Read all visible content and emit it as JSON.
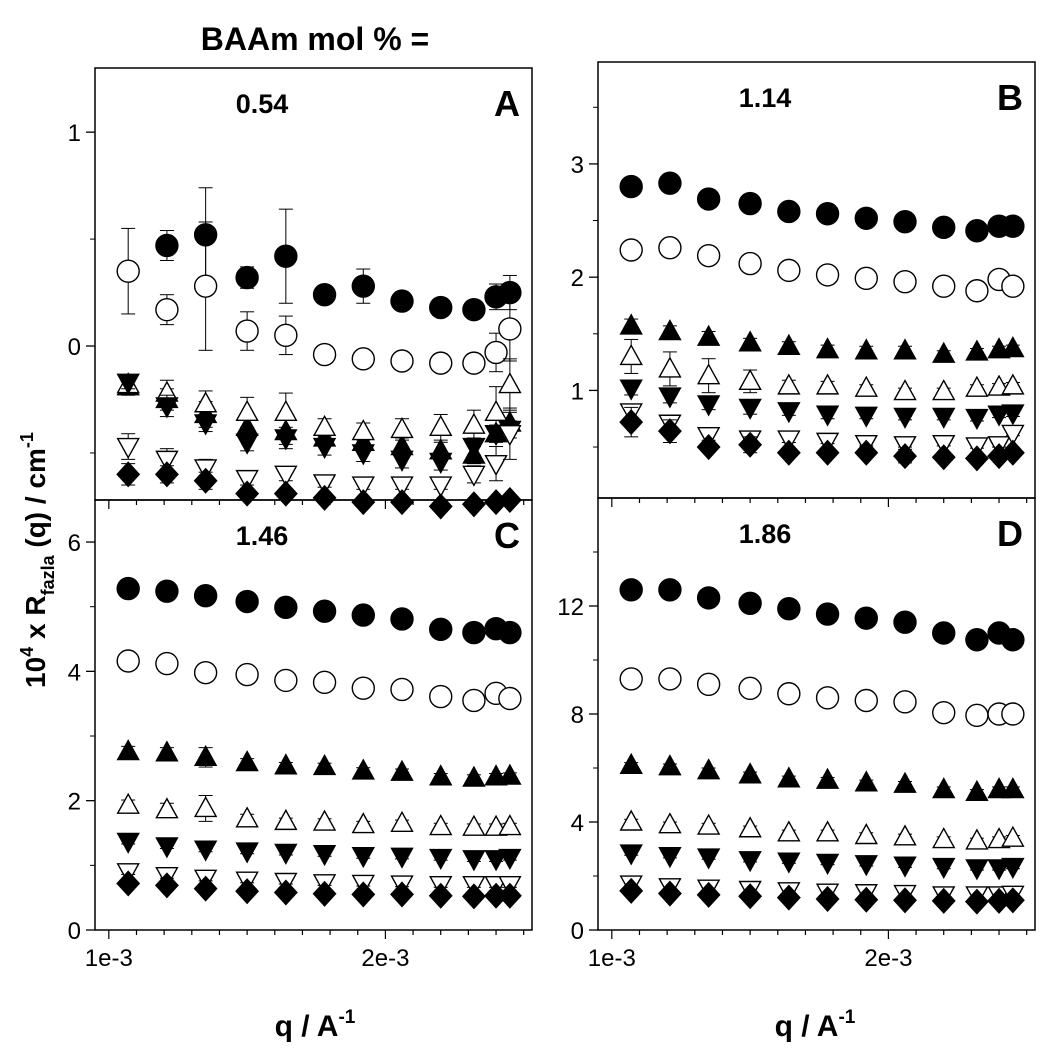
{
  "figure": {
    "header_label": "BAAm mol % =",
    "y_label_main": "10",
    "y_label_sup": "4",
    "y_label_mid": " x R",
    "y_label_sub": "fazla",
    "y_label_end": " (q)  / cm",
    "y_label_sup2": "-1",
    "x_label_main": "q  /  A",
    "x_label_sup": "-1"
  },
  "chart_data": [
    {
      "type": "scatter",
      "panel_letter": "A",
      "panel_value": "0.54",
      "xlim": [
        0.00095,
        0.00253
      ],
      "ylim": [
        -0.72,
        1.3
      ],
      "yticks": [
        0,
        1
      ],
      "ytick_labels": [
        "0",
        "1"
      ],
      "xticks": [
        0.001,
        0.002
      ],
      "xtick_labels": [],
      "x": [
        0.00107,
        0.00121,
        0.00135,
        0.0015,
        0.00164,
        0.00178,
        0.00192,
        0.00206,
        0.0022,
        0.00232,
        0.0024,
        0.00245
      ],
      "series": [
        {
          "marker": "circle-filled",
          "values": [
            null,
            0.47,
            0.52,
            0.32,
            0.42,
            0.24,
            0.28,
            0.21,
            0.18,
            0.17,
            0.23,
            0.25
          ],
          "errors": [
            null,
            0.07,
            0.22,
            0.05,
            0.22,
            0.0,
            0.08,
            0.0,
            0.0,
            0.0,
            0.06,
            0.08
          ]
        },
        {
          "marker": "circle-open",
          "values": [
            0.35,
            0.17,
            0.28,
            0.07,
            0.05,
            -0.04,
            -0.06,
            -0.07,
            -0.08,
            -0.08,
            -0.03,
            0.08
          ],
          "errors": [
            0.2,
            0.07,
            0.3,
            0.09,
            0.09,
            0.04,
            0.03,
            0.03,
            0.03,
            0.03,
            0.09,
            0.15
          ]
        },
        {
          "marker": "triangle-up-filled",
          "values": [
            -0.19,
            -0.25,
            -0.32,
            -0.38,
            -0.4,
            -0.43,
            -0.45,
            -0.47,
            -0.49,
            -0.51,
            -0.41,
            -0.36
          ],
          "errors": [
            0.04,
            0.05,
            0.06,
            0.04,
            0.06,
            0.04,
            0.04,
            0.04,
            0.04,
            0.04,
            0.04,
            0.05
          ]
        },
        {
          "marker": "triangle-up-open",
          "values": [
            -0.18,
            -0.22,
            -0.27,
            -0.31,
            -0.31,
            -0.38,
            -0.4,
            -0.39,
            -0.38,
            -0.37,
            -0.31,
            -0.18
          ],
          "errors": [
            0.04,
            0.06,
            0.06,
            0.07,
            0.09,
            0.04,
            0.04,
            0.05,
            0.06,
            0.07,
            0.12,
            0.12
          ]
        },
        {
          "marker": "triangle-down-filled",
          "values": [
            -0.17,
            -0.28,
            -0.36,
            -0.45,
            -0.43,
            -0.47,
            -0.5,
            -0.53,
            -0.54,
            -0.47,
            -0.41,
            -0.39
          ],
          "errors": [
            0.03,
            0.05,
            0.04,
            0.04,
            0.05,
            0.04,
            0.04,
            0.04,
            0.04,
            0.04,
            0.04,
            0.04
          ]
        },
        {
          "marker": "triangle-down-open",
          "values": [
            -0.47,
            -0.53,
            -0.57,
            -0.62,
            -0.6,
            -0.64,
            -0.65,
            -0.65,
            -0.65,
            -0.6,
            -0.55,
            -0.41
          ],
          "errors": [
            0.06,
            0.05,
            0.04,
            0.03,
            0.03,
            0.02,
            0.02,
            0.02,
            0.02,
            0.04,
            0.08,
            0.12
          ]
        },
        {
          "marker": "diamond-filled",
          "values": [
            -0.6,
            -0.6,
            -0.63,
            -0.69,
            -0.69,
            -0.71,
            -0.73,
            -0.73,
            -0.75,
            -0.74,
            -0.73,
            -0.72
          ],
          "errors": [
            0.05,
            0.04,
            0.04,
            0.02,
            0.02,
            0.02,
            0.02,
            0.02,
            0.02,
            0.02,
            0.02,
            0.02
          ]
        }
      ]
    },
    {
      "type": "scatter",
      "panel_letter": "B",
      "panel_value": "1.14",
      "xlim": [
        0.00095,
        0.00253
      ],
      "ylim": [
        0.05,
        3.9
      ],
      "yticks": [
        1,
        2,
        3
      ],
      "ytick_labels": [
        "1",
        "2",
        "3"
      ],
      "xticks": [
        0.001,
        0.002
      ],
      "xtick_labels": [],
      "x": [
        0.00107,
        0.00121,
        0.00135,
        0.0015,
        0.00164,
        0.00178,
        0.00192,
        0.00206,
        0.0022,
        0.00232,
        0.0024,
        0.00245
      ],
      "series": [
        {
          "marker": "circle-filled",
          "values": [
            2.8,
            2.83,
            2.69,
            2.65,
            2.58,
            2.56,
            2.52,
            2.49,
            2.44,
            2.41,
            2.45,
            2.45
          ],
          "errors": [
            0.06,
            0.06,
            0.05,
            0.04,
            0.04,
            0.04,
            0.04,
            0.04,
            0.04,
            0.04,
            0.04,
            0.04
          ]
        },
        {
          "marker": "circle-open",
          "values": [
            2.24,
            2.26,
            2.19,
            2.12,
            2.06,
            2.02,
            1.99,
            1.96,
            1.92,
            1.88,
            1.98,
            1.92
          ],
          "errors": [
            0.06,
            0.05,
            0.07,
            0.05,
            0.04,
            0.04,
            0.04,
            0.04,
            0.04,
            0.04,
            0.04,
            0.04
          ]
        },
        {
          "marker": "triangle-up-filled",
          "values": [
            1.57,
            1.52,
            1.47,
            1.42,
            1.39,
            1.36,
            1.35,
            1.35,
            1.32,
            1.34,
            1.36,
            1.37
          ],
          "errors": [
            0.06,
            0.05,
            0.05,
            0.04,
            0.04,
            0.04,
            0.04,
            0.04,
            0.03,
            0.03,
            0.03,
            0.03
          ]
        },
        {
          "marker": "triangle-up-open",
          "values": [
            1.3,
            1.19,
            1.13,
            1.08,
            1.04,
            1.04,
            1.02,
            0.99,
            0.99,
            1.02,
            1.03,
            1.04
          ],
          "errors": [
            0.15,
            0.15,
            0.15,
            0.1,
            0.05,
            0.04,
            0.03,
            0.03,
            0.03,
            0.03,
            0.03,
            0.03
          ]
        },
        {
          "marker": "triangle-down-filled",
          "values": [
            1.02,
            0.95,
            0.88,
            0.85,
            0.82,
            0.79,
            0.78,
            0.77,
            0.77,
            0.76,
            0.79,
            0.8
          ],
          "errors": [
            0.06,
            0.06,
            0.05,
            0.06,
            0.04,
            0.04,
            0.03,
            0.03,
            0.03,
            0.03,
            0.03,
            0.03
          ]
        },
        {
          "marker": "triangle-down-open",
          "values": [
            0.81,
            0.71,
            0.6,
            0.57,
            0.57,
            0.55,
            0.53,
            0.52,
            0.53,
            0.51,
            0.52,
            0.62
          ],
          "errors": [
            0.05,
            0.05,
            0.04,
            0.03,
            0.03,
            0.02,
            0.02,
            0.02,
            0.02,
            0.02,
            0.02,
            0.02
          ]
        },
        {
          "marker": "diamond-filled",
          "values": [
            0.72,
            0.64,
            0.5,
            0.52,
            0.45,
            0.45,
            0.45,
            0.42,
            0.41,
            0.4,
            0.42,
            0.45
          ],
          "errors": [
            0.13,
            0.1,
            0.04,
            0.07,
            0.04,
            0.04,
            0.04,
            0.06,
            0.04,
            0.04,
            0.04,
            0.04
          ]
        }
      ]
    },
    {
      "type": "scatter",
      "panel_letter": "C",
      "panel_value": "1.46",
      "xlim": [
        0.00095,
        0.00253
      ],
      "ylim": [
        0,
        6.65
      ],
      "yticks": [
        0,
        2,
        4,
        6
      ],
      "ytick_labels": [
        "0",
        "2",
        "4",
        "6"
      ],
      "xticks": [
        0.001,
        0.002
      ],
      "xtick_labels": [
        "1e-3",
        "2e-3"
      ],
      "x": [
        0.00107,
        0.00121,
        0.00135,
        0.0015,
        0.00164,
        0.00178,
        0.00192,
        0.00206,
        0.0022,
        0.00232,
        0.0024,
        0.00245
      ],
      "series": [
        {
          "marker": "circle-filled",
          "values": [
            5.28,
            5.24,
            5.17,
            5.08,
            4.99,
            4.93,
            4.87,
            4.81,
            4.65,
            4.6,
            4.66,
            4.6
          ],
          "errors": [
            0.05,
            0.05,
            0.05,
            0.05,
            0.05,
            0.05,
            0.05,
            0.05,
            0.05,
            0.05,
            0.05,
            0.05
          ]
        },
        {
          "marker": "circle-open",
          "values": [
            4.16,
            4.12,
            3.98,
            3.95,
            3.86,
            3.83,
            3.74,
            3.72,
            3.61,
            3.55,
            3.66,
            3.58
          ],
          "errors": [
            0.05,
            0.05,
            0.05,
            0.05,
            0.05,
            0.05,
            0.05,
            0.05,
            0.05,
            0.05,
            0.05,
            0.05
          ]
        },
        {
          "marker": "triangle-up-filled",
          "values": [
            2.76,
            2.74,
            2.67,
            2.59,
            2.54,
            2.53,
            2.46,
            2.44,
            2.37,
            2.35,
            2.37,
            2.38
          ],
          "errors": [
            0.08,
            0.08,
            0.15,
            0.06,
            0.05,
            0.05,
            0.05,
            0.05,
            0.05,
            0.05,
            0.05,
            0.05
          ]
        },
        {
          "marker": "triangle-up-open",
          "values": [
            1.93,
            1.86,
            1.88,
            1.72,
            1.68,
            1.67,
            1.63,
            1.65,
            1.6,
            1.59,
            1.59,
            1.6
          ],
          "errors": [
            0.08,
            0.1,
            0.2,
            0.07,
            0.05,
            0.05,
            0.05,
            0.05,
            0.05,
            0.05,
            0.05,
            0.05
          ]
        },
        {
          "marker": "triangle-down-filled",
          "values": [
            1.37,
            1.3,
            1.25,
            1.22,
            1.2,
            1.18,
            1.15,
            1.14,
            1.12,
            1.1,
            1.1,
            1.12
          ],
          "errors": [
            0.04,
            0.04,
            0.04,
            0.04,
            0.04,
            0.04,
            0.04,
            0.04,
            0.04,
            0.04,
            0.04,
            0.04
          ]
        },
        {
          "marker": "triangle-down-open",
          "values": [
            0.9,
            0.84,
            0.8,
            0.77,
            0.75,
            0.73,
            0.72,
            0.71,
            0.7,
            0.7,
            0.7,
            0.7
          ],
          "errors": [
            0.04,
            0.04,
            0.04,
            0.04,
            0.04,
            0.04,
            0.04,
            0.04,
            0.04,
            0.04,
            0.04,
            0.04
          ]
        },
        {
          "marker": "diamond-filled",
          "values": [
            0.72,
            0.69,
            0.64,
            0.6,
            0.58,
            0.56,
            0.55,
            0.55,
            0.53,
            0.52,
            0.53,
            0.53
          ],
          "errors": [
            0.04,
            0.04,
            0.04,
            0.04,
            0.04,
            0.04,
            0.04,
            0.04,
            0.04,
            0.04,
            0.04,
            0.04
          ]
        }
      ]
    },
    {
      "type": "scatter",
      "panel_letter": "D",
      "panel_value": "1.86",
      "xlim": [
        0.00095,
        0.00253
      ],
      "ylim": [
        0,
        16
      ],
      "yticks": [
        0,
        4,
        8,
        12
      ],
      "ytick_labels": [
        "0",
        "4",
        "8",
        "12"
      ],
      "xticks": [
        0.001,
        0.002
      ],
      "xtick_labels": [
        "1e-3",
        "2e-3"
      ],
      "x": [
        0.00107,
        0.00121,
        0.00135,
        0.0015,
        0.00164,
        0.00178,
        0.00192,
        0.00206,
        0.0022,
        0.00232,
        0.0024,
        0.00245
      ],
      "series": [
        {
          "marker": "circle-filled",
          "values": [
            12.6,
            12.6,
            12.3,
            12.1,
            11.9,
            11.7,
            11.55,
            11.4,
            11.0,
            10.75,
            11.0,
            10.75
          ],
          "errors": [
            0.1,
            0.1,
            0.1,
            0.1,
            0.1,
            0.1,
            0.1,
            0.1,
            0.1,
            0.1,
            0.1,
            0.1
          ]
        },
        {
          "marker": "circle-open",
          "values": [
            9.3,
            9.3,
            9.1,
            8.95,
            8.75,
            8.6,
            8.5,
            8.45,
            8.05,
            7.95,
            8.0,
            8.0
          ],
          "errors": [
            0.1,
            0.1,
            0.1,
            0.1,
            0.1,
            0.1,
            0.1,
            0.1,
            0.1,
            0.1,
            0.1,
            0.1
          ]
        },
        {
          "marker": "triangle-up-filled",
          "values": [
            6.1,
            6.05,
            5.9,
            5.75,
            5.6,
            5.55,
            5.45,
            5.4,
            5.2,
            5.1,
            5.2,
            5.2
          ],
          "errors": [
            0.1,
            0.1,
            0.1,
            0.1,
            0.1,
            0.1,
            0.1,
            0.1,
            0.1,
            0.1,
            0.1,
            0.1
          ]
        },
        {
          "marker": "triangle-up-open",
          "values": [
            4.0,
            3.9,
            3.85,
            3.75,
            3.6,
            3.6,
            3.5,
            3.45,
            3.35,
            3.3,
            3.35,
            3.4
          ],
          "errors": [
            0.1,
            0.1,
            0.1,
            0.1,
            0.1,
            0.1,
            0.1,
            0.1,
            0.1,
            0.1,
            0.1,
            0.1
          ]
        },
        {
          "marker": "triangle-down-filled",
          "values": [
            2.85,
            2.75,
            2.7,
            2.6,
            2.55,
            2.5,
            2.45,
            2.4,
            2.35,
            2.3,
            2.3,
            2.35
          ],
          "errors": [
            0.08,
            0.08,
            0.08,
            0.08,
            0.08,
            0.08,
            0.08,
            0.08,
            0.08,
            0.08,
            0.08,
            0.08
          ]
        },
        {
          "marker": "triangle-down-open",
          "values": [
            1.7,
            1.6,
            1.55,
            1.5,
            1.45,
            1.4,
            1.38,
            1.35,
            1.3,
            1.3,
            1.3,
            1.32
          ],
          "errors": [
            0.06,
            0.06,
            0.06,
            0.06,
            0.06,
            0.06,
            0.06,
            0.06,
            0.06,
            0.06,
            0.06,
            0.06
          ]
        },
        {
          "marker": "diamond-filled",
          "values": [
            1.45,
            1.35,
            1.3,
            1.25,
            1.2,
            1.15,
            1.12,
            1.1,
            1.08,
            1.05,
            1.08,
            1.1
          ],
          "errors": [
            0.06,
            0.06,
            0.06,
            0.06,
            0.06,
            0.06,
            0.06,
            0.06,
            0.06,
            0.06,
            0.06,
            0.06
          ]
        }
      ]
    }
  ]
}
